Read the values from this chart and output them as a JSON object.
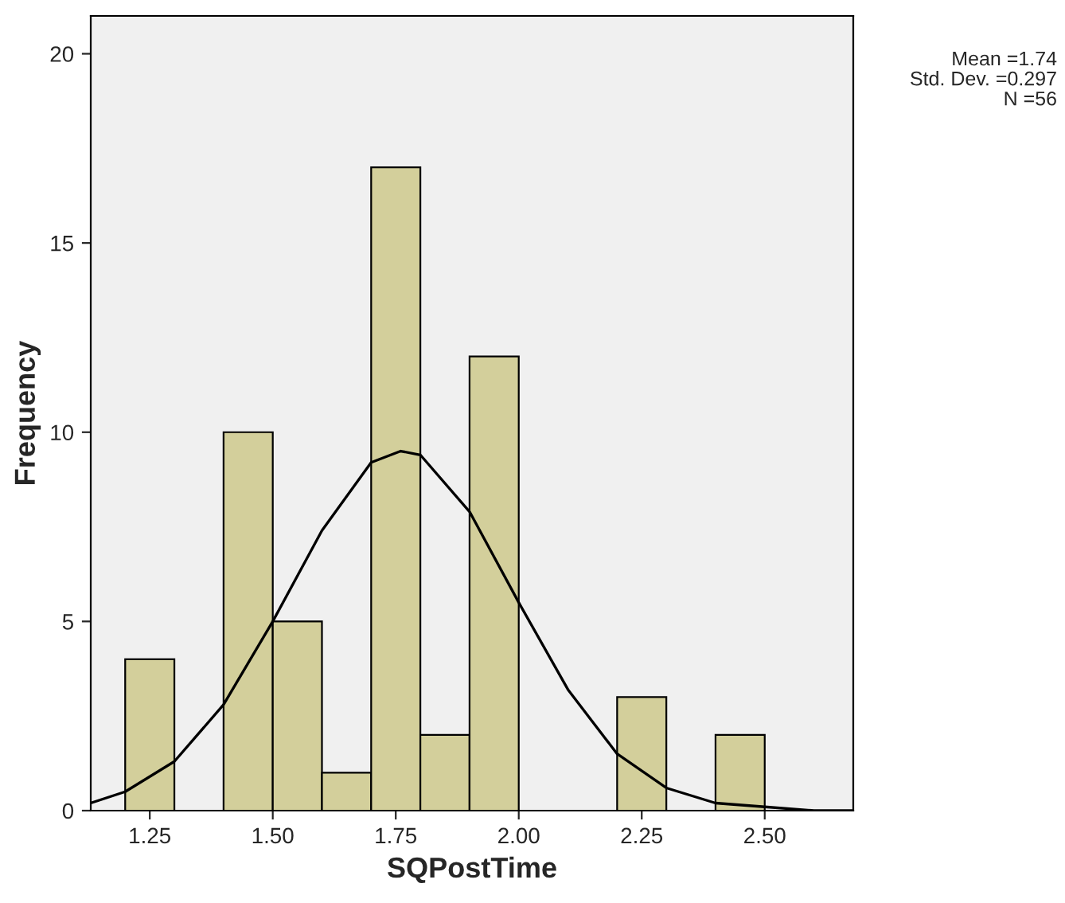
{
  "chart_data": {
    "type": "histogram",
    "xlabel": "SQPostTime",
    "ylabel": "Frequency",
    "bins": [
      1.2,
      1.3,
      1.4,
      1.5,
      1.6,
      1.7,
      1.8,
      1.9,
      2.0,
      2.1,
      2.2,
      2.3,
      2.4,
      2.5
    ],
    "values": [
      4,
      0,
      10,
      5,
      1,
      17,
      2,
      12,
      0,
      0,
      3,
      0,
      2
    ],
    "color": "#d3cf9b",
    "series": [
      {
        "type": "line",
        "color": "#000000",
        "x": [
          1.13,
          1.2,
          1.3,
          1.4,
          1.5,
          1.6,
          1.7,
          1.76,
          1.8,
          1.9,
          2.0,
          2.1,
          2.2,
          2.3,
          2.4,
          2.5,
          2.6,
          2.68
        ],
        "values": [
          0.2,
          0.5,
          1.3,
          2.8,
          5.0,
          7.4,
          9.2,
          9.5,
          9.4,
          7.9,
          5.5,
          3.2,
          1.5,
          0.6,
          0.2,
          0.1,
          0.0,
          0.0
        ]
      }
    ],
    "xlim": [
      1.13,
      2.68
    ],
    "ylim": [
      0,
      21
    ],
    "xticks": [
      {
        "value": 1.25,
        "label": "1.25"
      },
      {
        "value": 1.5,
        "label": "1.50"
      },
      {
        "value": 1.75,
        "label": "1.75"
      },
      {
        "value": 2.0,
        "label": "2.00"
      },
      {
        "value": 2.25,
        "label": "2.25"
      },
      {
        "value": 2.5,
        "label": "2.50"
      }
    ],
    "yticks": [
      0,
      5,
      10,
      15,
      20
    ],
    "grid": false,
    "legend": false,
    "annotations": [
      "Mean =1.74",
      "Std. Dev. =0.297",
      "N =56"
    ]
  }
}
